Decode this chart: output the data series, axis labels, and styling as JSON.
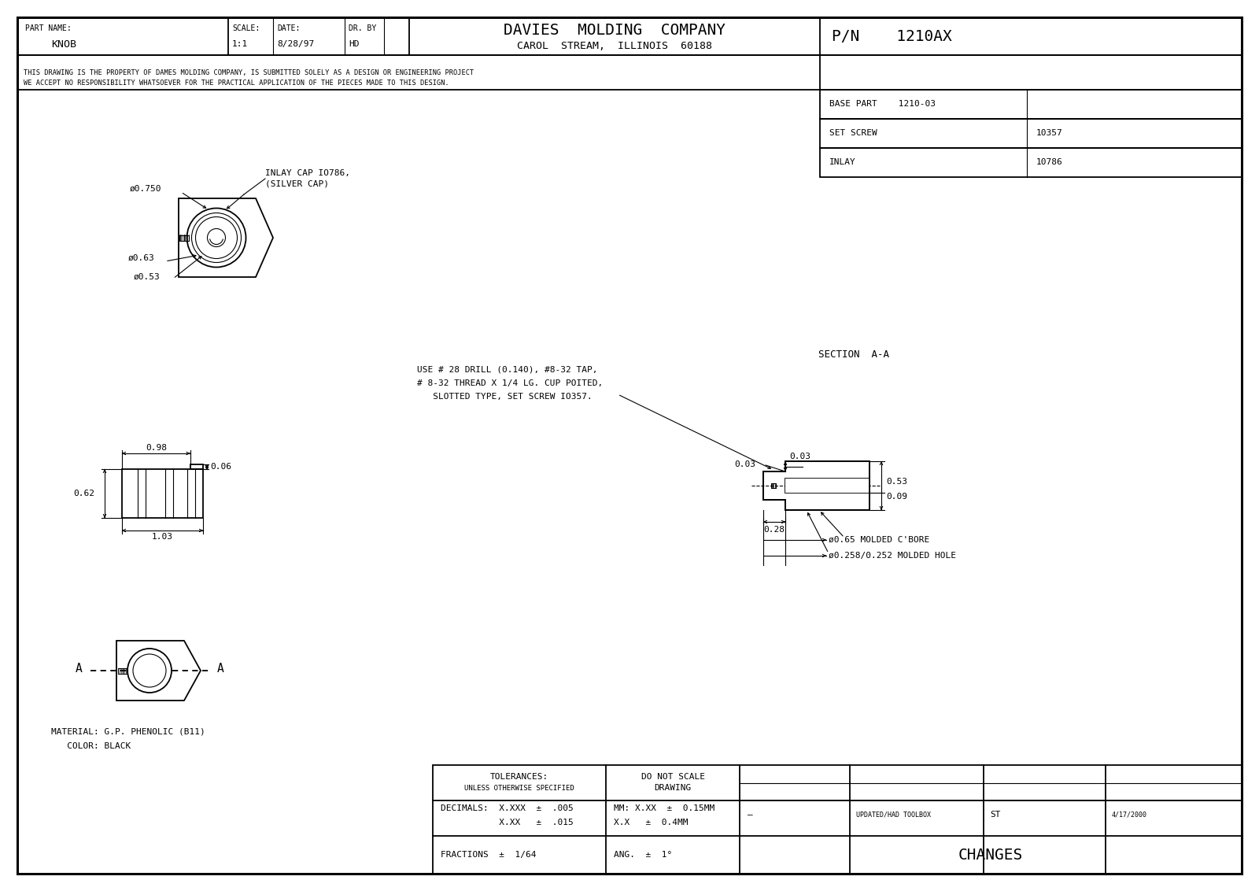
{
  "bg_color": "#ffffff",
  "line_color": "#000000",
  "title_company": "DAVIES  MOLDING  COMPANY",
  "title_address": "CAROL  STREAM,  ILLINOIS  60188",
  "pn_label": "P/N",
  "pn_val": "1210AX",
  "base_part_label": "BASE PART",
  "base_part_val": "1210-03",
  "set_screw_label": "SET SCREW",
  "set_screw_val": "10357",
  "inlay_label": "INLAY",
  "inlay_val": "10786",
  "part_name_label": "PART NAME:",
  "part_name_val": "KNOB",
  "scale_label": "SCALE:",
  "scale_val": "1:1",
  "date_label": "DATE:",
  "date_val": "8/28/97",
  "dr_by_label": "DR. BY",
  "dr_by_val": "HD",
  "header_note1": "THIS DRAWING IS THE PROPERTY OF DAMES MOLDING COMPANY, IS SUBMITTED SOLELY AS A DESIGN OR ENGINEERING PROJECT",
  "header_note2": "WE ACCEPT NO RESPONSIBILITY WHATSOEVER FOR THE PRACTICAL APPLICATION OF THE PIECES MADE TO THIS DESIGN.",
  "tolerances_label": "TOLERANCES:",
  "tolerances_sub": "UNLESS OTHERWISE SPECIFIED",
  "do_not_scale1": "DO NOT SCALE",
  "do_not_scale2": "DRAWING",
  "decimals_label": "DECIMALS:",
  "decimals_xxx": "X.XXX  ±  .005",
  "decimals_xx": "X.XX   ±  .015",
  "mm_xx": "MM: X.XX  ±  0.15MM",
  "mm_x": "X.X   ±  0.4MM",
  "fractions": "FRACTIONS  ±  1/64",
  "ang": "ANG.  ±  1°",
  "changes": "CHANGES",
  "dash": "–",
  "updated": "UPDATED/HAD TOOLBOX",
  "updated_by": "ST",
  "updated_date": "4/17/2000",
  "section_label": "SECTION  A-A",
  "note_line1": "USE # 28 DRILL (0.140), #8-32 TAP,",
  "note_line2": "# 8-32 THREAD X 1/4 LG. CUP POITED,",
  "note_line3": "   SLOTTED TYPE, SET SCREW IO357.",
  "material_line1": "MATERIAL: G.P. PHENOLIC (B11)",
  "material_line2": "   COLOR: BLACK",
  "inlay_cap_line1": "INLAY CAP IO786,",
  "inlay_cap_line2": "(SILVER CAP)",
  "dim_d750": "ø0.750",
  "dim_d63": "ø0.63",
  "dim_d53": "ø0.53",
  "dim_098": "0.98",
  "dim_103": "1.03",
  "dim_062": "0.62",
  "dim_006": "0.06",
  "dim_003": "0.03",
  "dim_028": "0.28",
  "dim_053_r": "0.53",
  "dim_009": "0.09",
  "dim_d65": "ø0.65 MOLDED C'BORE",
  "dim_d258": "ø0.258/0.252 MOLDED HOLE",
  "A_label": "A"
}
